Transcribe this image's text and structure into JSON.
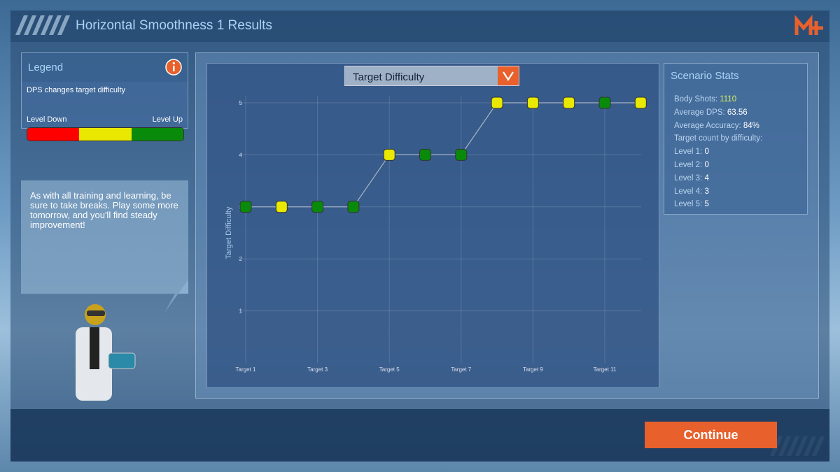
{
  "header": {
    "title": "Horizontal Smoothness 1 Results"
  },
  "legend_panel": {
    "title": "Legend",
    "description": "DPS changes target difficulty",
    "left_label": "Level Down",
    "right_label": "Level Up",
    "colors": [
      "#ff0000",
      "#e8e800",
      "#0a8a0a"
    ]
  },
  "tip": {
    "text": "As with all training and learning, be sure to take breaks. Play some more tomorrow, and you'll find steady improvement!"
  },
  "dropdown": {
    "label": "Target Difficulty"
  },
  "chart_data": {
    "type": "line",
    "y_label": "Target Difficulty",
    "categories": [
      "Target 1",
      null,
      "Target 3",
      null,
      "Target 5",
      null,
      "Target 7",
      null,
      "Target 9",
      null,
      "Target 11",
      null
    ],
    "values": [
      3,
      3,
      3,
      3,
      4,
      4,
      4,
      5,
      5,
      5,
      5,
      5
    ],
    "point_colors": [
      "#0a8a0a",
      "#e8e800",
      "#0a8a0a",
      "#0a8a0a",
      "#e8e800",
      "#0a8a0a",
      "#0a8a0a",
      "#e8e800",
      "#e8e800",
      "#e8e800",
      "#0a8a0a",
      "#e8e800"
    ],
    "line_color": "#a8b4c4",
    "ylim": [
      0,
      5
    ],
    "yticks": [
      1,
      2,
      3,
      4,
      5
    ],
    "grid": true
  },
  "stats": {
    "title": "Scenario Stats",
    "rows": [
      {
        "label": "Body Shots:",
        "value": "1110"
      },
      {
        "label": "Average DPS:",
        "value": "63.56"
      },
      {
        "label": "Average Accuracy:",
        "value": "84%"
      },
      {
        "label": "Target count by difficulty:"
      },
      {
        "label": "Level 1:",
        "value": "0"
      },
      {
        "label": "Level 2:",
        "value": "0"
      },
      {
        "label": "Level 3:",
        "value": "4"
      },
      {
        "label": "Level 4:",
        "value": "3"
      },
      {
        "label": "Level 5:",
        "value": "5"
      }
    ]
  },
  "button": {
    "label": "Continue"
  }
}
